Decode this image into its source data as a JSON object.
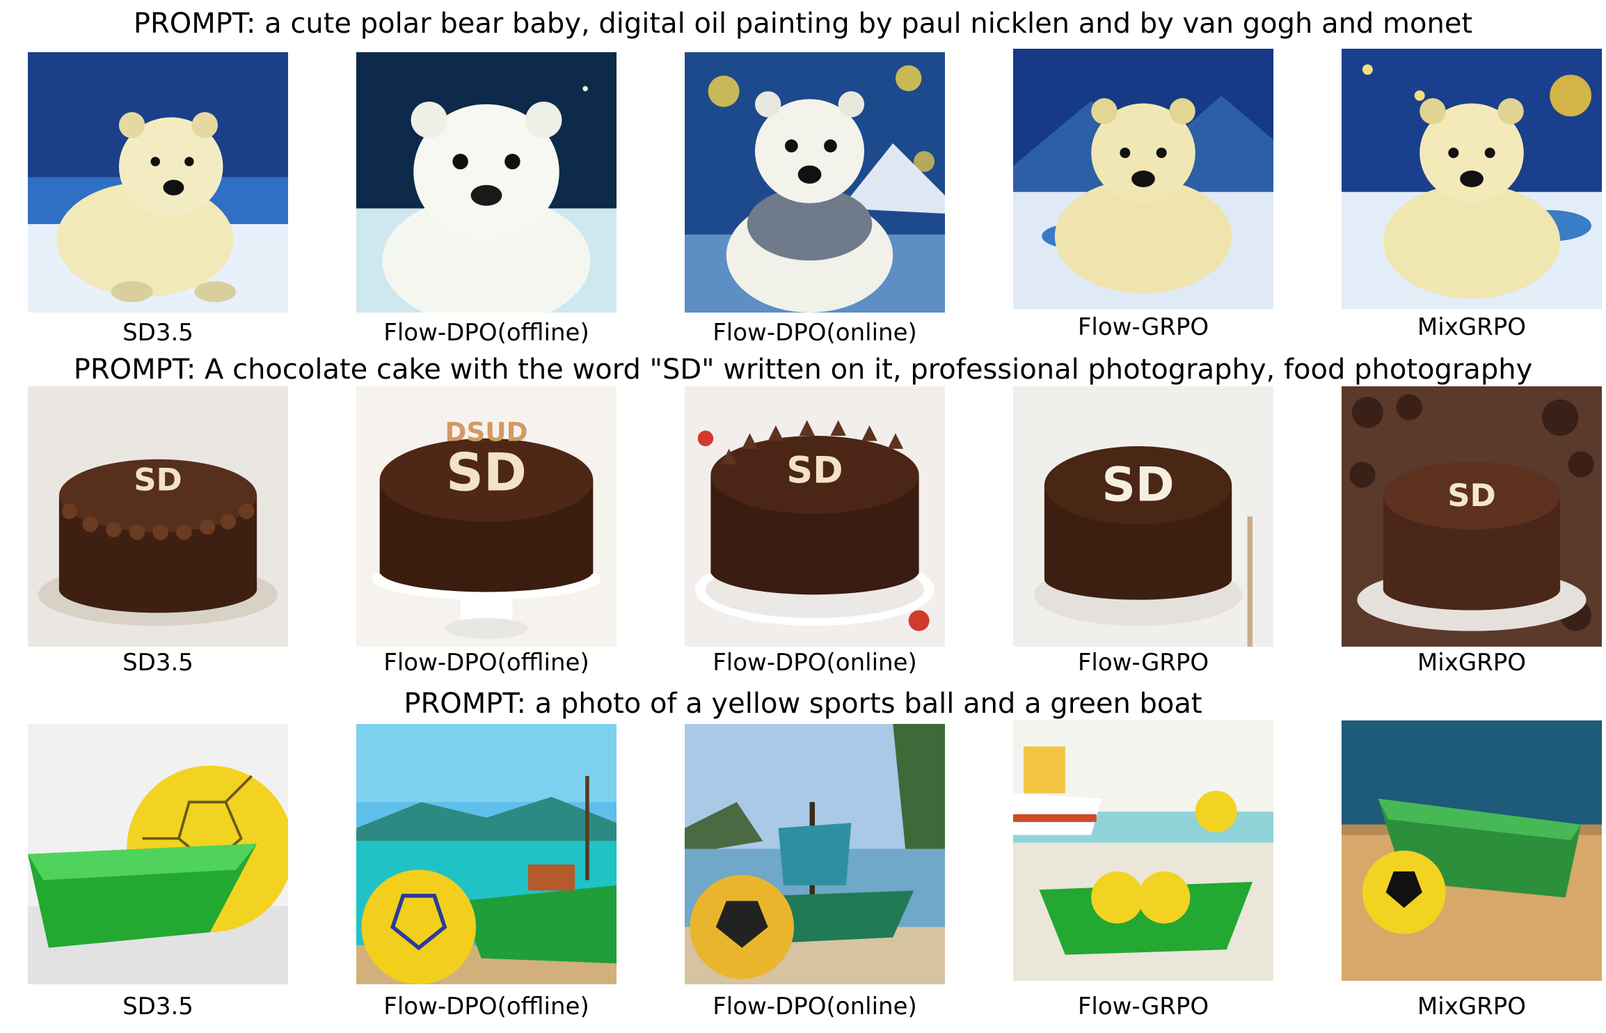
{
  "rows": [
    {
      "prompt": "PROMPT: a cute polar bear baby, digital oil painting by paul nicklen and by van gogh and monet",
      "captions": [
        "SD3.5",
        "Flow-DPO(offline)",
        "Flow-DPO(online)",
        "Flow-GRPO",
        "MixGRPO"
      ]
    },
    {
      "prompt": "PROMPT: A chocolate cake with the word \"SD\" written on it, professional photography, food photography",
      "captions": [
        "SD3.5",
        "Flow-DPO(offline)",
        "Flow-DPO(online)",
        "Flow-GRPO",
        "MixGRPO"
      ],
      "cake_texts": [
        "SD",
        "SD",
        "SD",
        "SD",
        "SD"
      ],
      "cake_extra_text": "DSUD"
    },
    {
      "prompt": "PROMPT: a photo of a yellow sports ball and a green boat",
      "captions": [
        "SD3.5",
        "Flow-DPO(offline)",
        "Flow-DPO(online)",
        "Flow-GRPO",
        "MixGRPO"
      ]
    }
  ],
  "colors": {
    "night_sky": "#1c3f8a",
    "snow": "#e8f0fa",
    "bear_fur": "#f1e9b8",
    "chocolate": "#4a2616",
    "icing": "#f3e2c6",
    "ball_yellow": "#f2d321",
    "boat_green": "#23a831",
    "sea": "#3aa7c9"
  }
}
